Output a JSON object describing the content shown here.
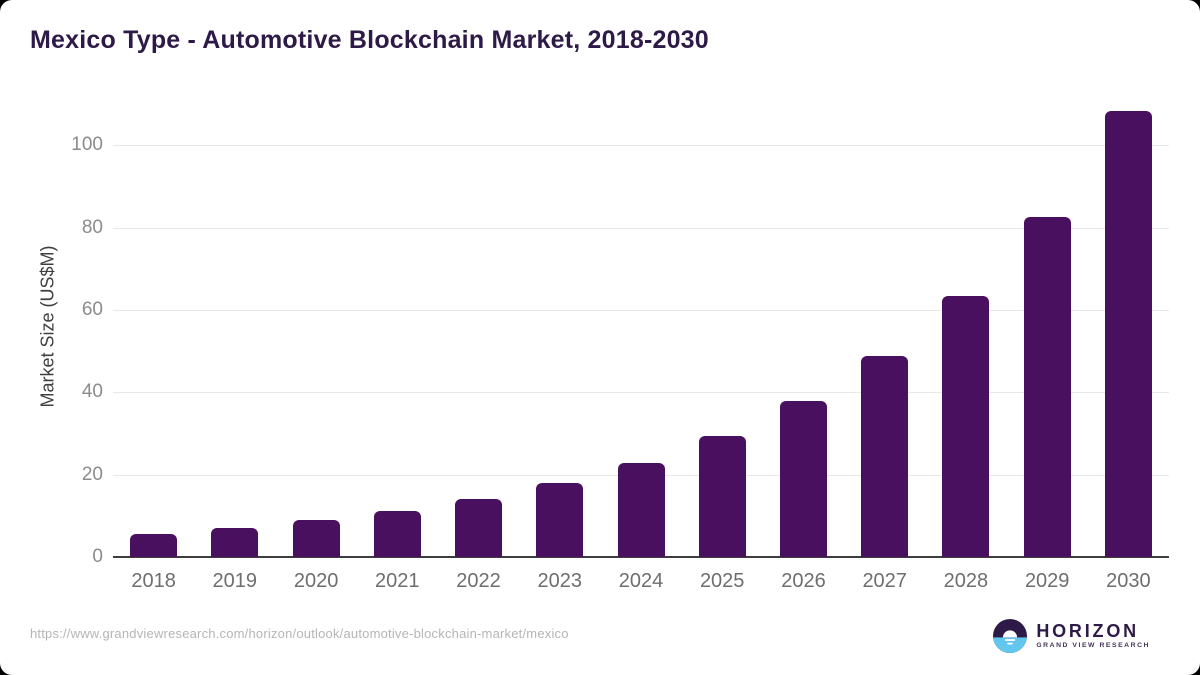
{
  "header": {
    "title": "Mexico Type - Automotive Blockchain Market, 2018-2030"
  },
  "y_axis": {
    "title": "Market Size (US$M)"
  },
  "chart_data": {
    "type": "bar",
    "title": "Mexico Type - Automotive Blockchain Market, 2018-2030",
    "xlabel": "",
    "ylabel": "Market Size (US$M)",
    "categories": [
      "2018",
      "2019",
      "2020",
      "2021",
      "2022",
      "2023",
      "2024",
      "2025",
      "2026",
      "2027",
      "2028",
      "2029",
      "2030"
    ],
    "values": [
      5.7,
      7.1,
      8.9,
      11.3,
      14.1,
      18.0,
      22.9,
      29.3,
      37.9,
      48.9,
      63.3,
      82.6,
      108.3
    ],
    "yticks": [
      0,
      20,
      40,
      60,
      80,
      100
    ],
    "ylim": [
      0,
      110
    ],
    "grid": "horizontal",
    "legend": "none"
  },
  "colors": {
    "bar": "#4A1060",
    "title_text": "#2E1A47",
    "logo_blue": "#62C6EE",
    "logo_purple": "#2E1A47"
  },
  "footer": {
    "url": "https://www.grandviewresearch.com/horizon/outlook/automotive-blockchain-market/mexico"
  },
  "logo": {
    "name": "HORIZON",
    "tagline": "GRAND VIEW RESEARCH"
  }
}
